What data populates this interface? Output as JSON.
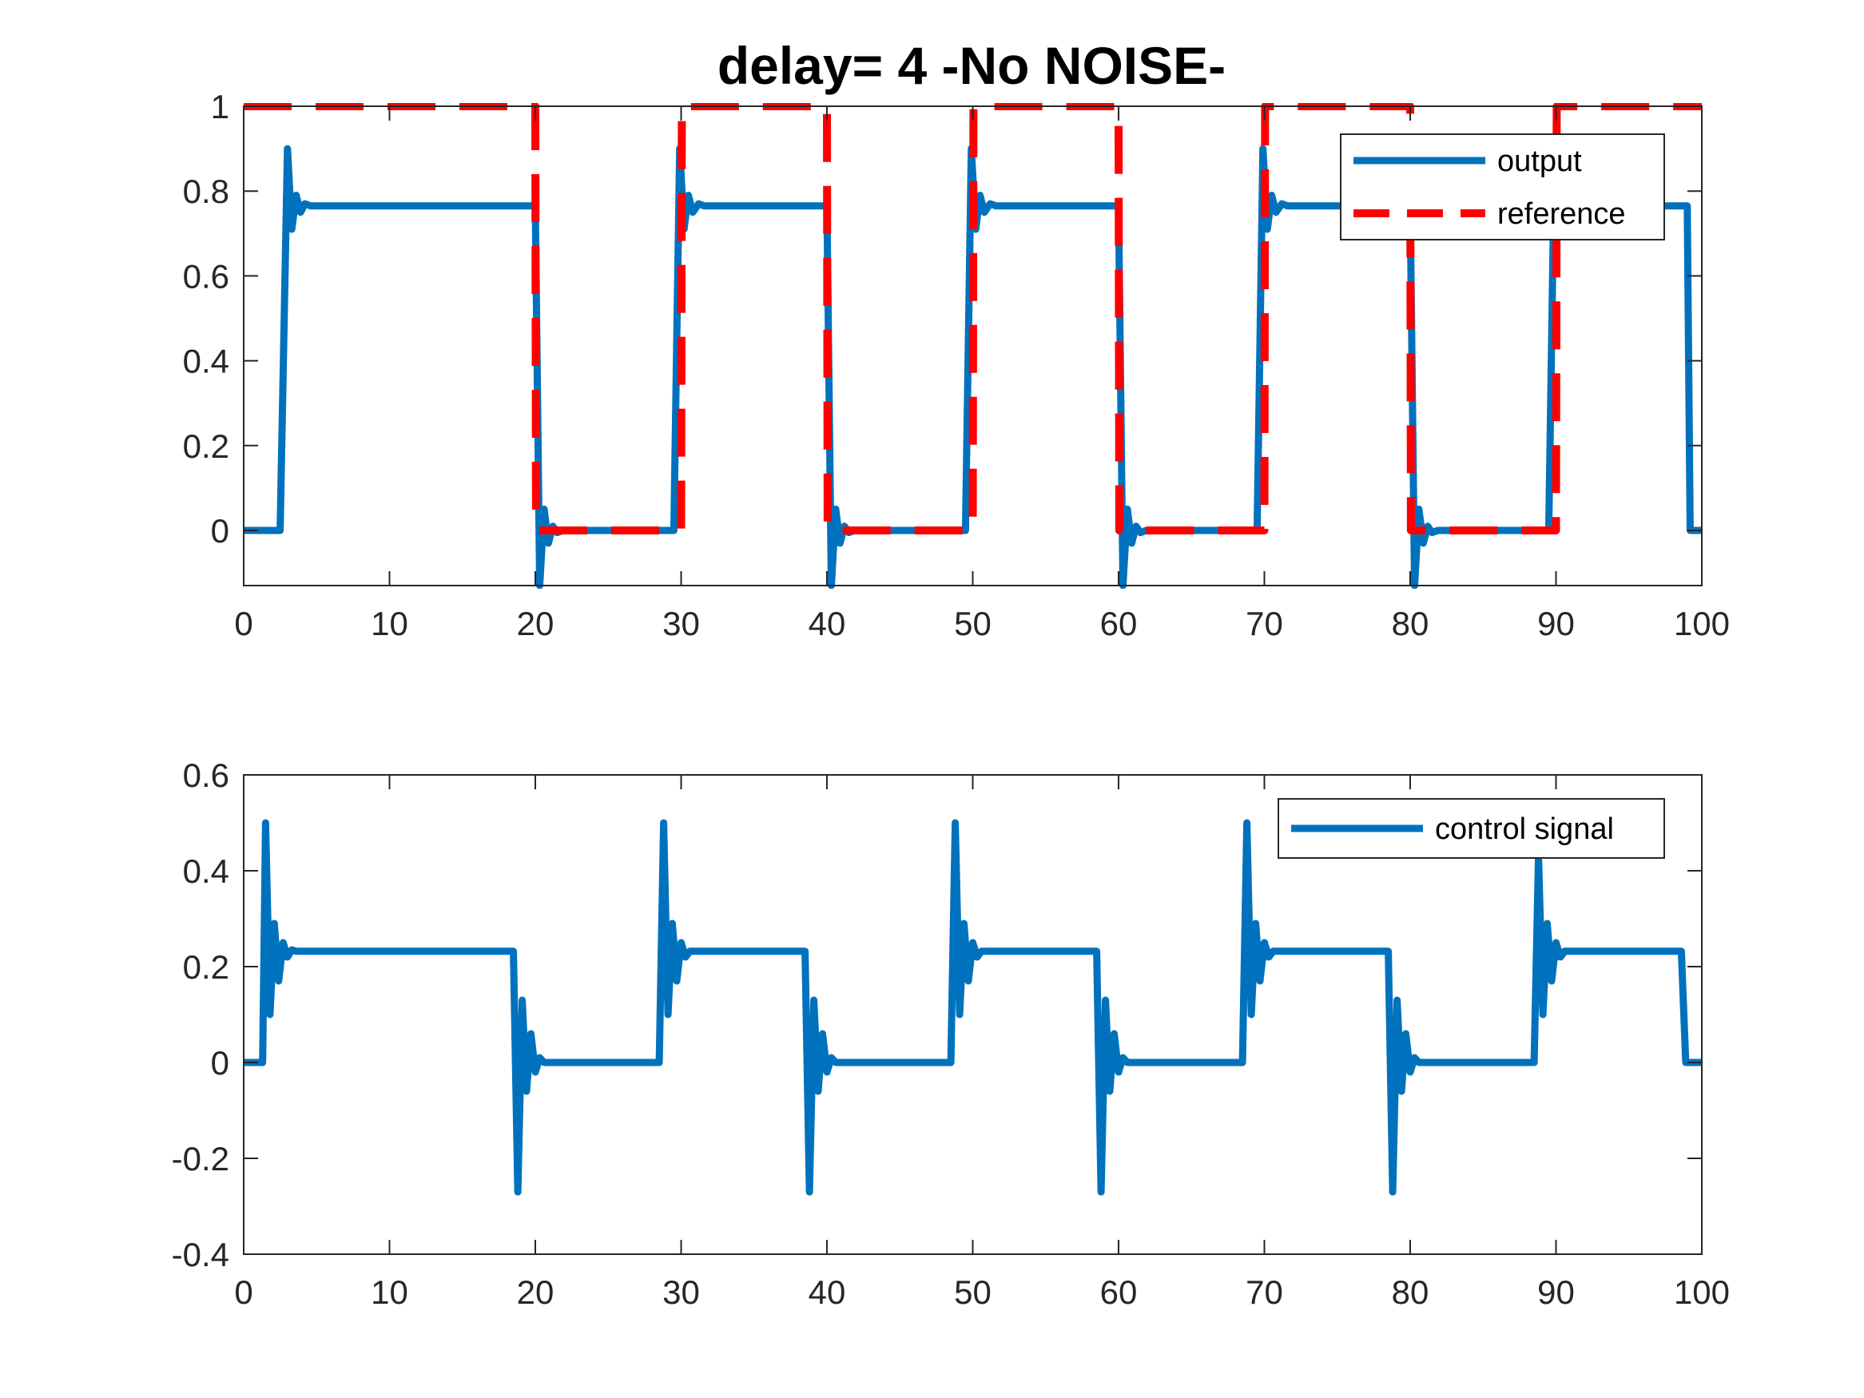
{
  "title": "delay= 4  -No NOISE-",
  "colors": {
    "output": "#0072BD",
    "reference": "#FF0000",
    "control": "#0072BD",
    "axes": "#262626"
  },
  "chart_data": [
    {
      "type": "line",
      "title": "delay= 4  -No NOISE-",
      "xlabel": "",
      "ylabel": "",
      "xlim": [
        0,
        100
      ],
      "ylim": [
        -0.13,
        1
      ],
      "xticks": [
        0,
        10,
        20,
        30,
        40,
        50,
        60,
        70,
        80,
        90,
        100
      ],
      "xtick_labels": [
        "0",
        "10",
        "20",
        "30",
        "40",
        "50",
        "60",
        "70",
        "80",
        "90",
        "100"
      ],
      "yticks": [
        0,
        0.2,
        0.4,
        0.6,
        0.8,
        1
      ],
      "ytick_labels": [
        "0",
        "0.2",
        "0.4",
        "0.6",
        "0.8",
        "1"
      ],
      "grid": false,
      "legend_position": "top-right",
      "series": [
        {
          "name": "output",
          "style": "solid",
          "color": "#0072BD",
          "x": [
            0,
            2.5,
            3,
            3.3,
            3.6,
            3.9,
            4.2,
            4.6,
            5,
            20,
            20.3,
            20.6,
            20.9,
            21.2,
            21.5,
            21.9,
            22.2,
            29.5,
            29.9,
            30.2,
            30.5,
            30.8,
            31.2,
            31.6,
            40,
            40.3,
            40.6,
            40.9,
            41.2,
            41.5,
            41.9,
            42.2,
            49.5,
            49.9,
            50.2,
            50.5,
            50.8,
            51.2,
            51.6,
            60,
            60.3,
            60.6,
            60.9,
            61.2,
            61.5,
            61.9,
            62.2,
            69.5,
            69.9,
            70.2,
            70.5,
            70.8,
            71.2,
            71.6,
            80,
            80.3,
            80.6,
            80.9,
            81.2,
            81.5,
            81.9,
            82.2,
            89.5,
            89.9,
            90.2,
            90.5,
            90.8,
            91.2,
            91.6,
            99,
            99.2,
            100
          ],
          "y": [
            0,
            0,
            0.9,
            0.71,
            0.79,
            0.75,
            0.77,
            0.765,
            0.765,
            0.765,
            -0.13,
            0.05,
            -0.03,
            0.01,
            -0.005,
            0,
            0,
            0,
            0.9,
            0.71,
            0.79,
            0.75,
            0.77,
            0.765,
            0.765,
            -0.13,
            0.05,
            -0.03,
            0.01,
            -0.005,
            0,
            0,
            0,
            0.9,
            0.71,
            0.79,
            0.75,
            0.77,
            0.765,
            0.765,
            -0.13,
            0.05,
            -0.03,
            0.01,
            -0.005,
            0,
            0,
            0,
            0.9,
            0.71,
            0.79,
            0.75,
            0.77,
            0.765,
            0.765,
            -0.13,
            0.05,
            -0.03,
            0.01,
            -0.005,
            0,
            0,
            0,
            0.9,
            0.71,
            0.79,
            0.75,
            0.77,
            0.765,
            0.765,
            0,
            0
          ]
        },
        {
          "name": "reference",
          "style": "dashed",
          "color": "#FF0000",
          "x": [
            0,
            20,
            20.05,
            30,
            30.05,
            40,
            40.05,
            50,
            50.05,
            60,
            60.05,
            70,
            70.05,
            80,
            80.05,
            90,
            90.05,
            100
          ],
          "y": [
            1,
            1,
            0,
            0,
            1,
            1,
            0,
            0,
            1,
            1,
            0,
            0,
            1,
            1,
            0,
            0,
            1,
            1
          ]
        }
      ]
    },
    {
      "type": "line",
      "xlabel": "",
      "ylabel": "",
      "xlim": [
        0,
        100
      ],
      "ylim": [
        -0.4,
        0.6
      ],
      "xticks": [
        0,
        10,
        20,
        30,
        40,
        50,
        60,
        70,
        80,
        90,
        100
      ],
      "xtick_labels": [
        "0",
        "10",
        "20",
        "30",
        "40",
        "50",
        "60",
        "70",
        "80",
        "90",
        "100"
      ],
      "yticks": [
        -0.4,
        -0.2,
        0,
        0.2,
        0.4,
        0.6
      ],
      "ytick_labels": [
        "-0.4",
        "-0.2",
        "0",
        "0.2",
        "0.4",
        "0.6"
      ],
      "grid": false,
      "legend_position": "top-right",
      "series": [
        {
          "name": "control signal",
          "style": "solid",
          "color": "#0072BD",
          "x": [
            0,
            1.3,
            1.5,
            1.8,
            2.1,
            2.4,
            2.7,
            3.0,
            3.3,
            3.6,
            18.5,
            18.8,
            19.1,
            19.4,
            19.7,
            20.0,
            20.3,
            20.6,
            20.9,
            28.5,
            28.8,
            29.1,
            29.4,
            29.7,
            30.0,
            30.3,
            30.6,
            38.5,
            38.8,
            39.1,
            39.4,
            39.7,
            40.0,
            40.3,
            40.6,
            40.9,
            48.5,
            48.8,
            49.1,
            49.4,
            49.7,
            50.0,
            50.3,
            50.6,
            58.5,
            58.8,
            59.1,
            59.4,
            59.7,
            60.0,
            60.3,
            60.6,
            60.9,
            68.5,
            68.8,
            69.1,
            69.4,
            69.7,
            70.0,
            70.3,
            70.6,
            78.5,
            78.8,
            79.1,
            79.4,
            79.7,
            80.0,
            80.3,
            80.6,
            80.9,
            88.5,
            88.8,
            89.1,
            89.4,
            89.7,
            90.0,
            90.3,
            90.6,
            98.6,
            98.9,
            100
          ],
          "y": [
            0,
            0,
            0.5,
            0.1,
            0.29,
            0.17,
            0.25,
            0.22,
            0.235,
            0.232,
            0.232,
            -0.27,
            0.13,
            -0.06,
            0.06,
            -0.02,
            0.01,
            0,
            0,
            0,
            0.5,
            0.1,
            0.29,
            0.17,
            0.25,
            0.22,
            0.232,
            0.232,
            -0.27,
            0.13,
            -0.06,
            0.06,
            -0.02,
            0.01,
            0,
            0,
            0,
            0.5,
            0.1,
            0.29,
            0.17,
            0.25,
            0.22,
            0.232,
            0.232,
            -0.27,
            0.13,
            -0.06,
            0.06,
            -0.02,
            0.01,
            0,
            0,
            0,
            0.5,
            0.1,
            0.29,
            0.17,
            0.25,
            0.22,
            0.232,
            0.232,
            -0.27,
            0.13,
            -0.06,
            0.06,
            -0.02,
            0.01,
            0,
            0,
            0,
            0.43,
            0.1,
            0.29,
            0.17,
            0.25,
            0.22,
            0.232,
            0.232,
            0,
            0
          ]
        }
      ]
    }
  ]
}
